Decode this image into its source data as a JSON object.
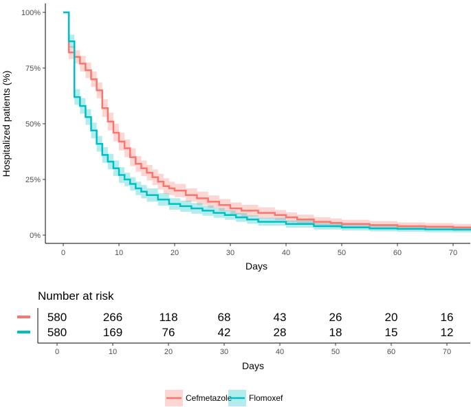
{
  "chart_data": {
    "type": "line",
    "subtype": "kaplan-meier",
    "ylabel": "Hospitalized patients (%)",
    "xlabel": "Days",
    "xlim": [
      -4,
      74
    ],
    "ylim": [
      0,
      100
    ],
    "x_ticks": [
      0,
      10,
      20,
      30,
      40,
      50,
      60,
      70
    ],
    "y_ticks": [
      0,
      25,
      50,
      75,
      100
    ],
    "y_tick_labels": [
      "0%",
      "25%",
      "50%",
      "75%",
      "100%"
    ],
    "colors": {
      "Cefmetazole": "#F8766D",
      "Flomoxef": "#00BFC4"
    },
    "series": [
      {
        "name": "Cefmetazole",
        "color": "#F8766D",
        "x": [
          0,
          1,
          2,
          3,
          4,
          5,
          6,
          7,
          8,
          9,
          10,
          11,
          12,
          13,
          14,
          15,
          16,
          17,
          18,
          19,
          20,
          22,
          24,
          26,
          28,
          30,
          32,
          35,
          38,
          40,
          42,
          45,
          48,
          50,
          55,
          60,
          65,
          70,
          74
        ],
        "y": [
          100,
          82,
          80,
          77,
          74,
          70,
          65,
          57,
          51,
          46,
          42,
          39,
          35,
          32,
          30,
          28,
          26,
          24,
          22,
          21,
          20,
          18,
          16.5,
          15,
          13.5,
          12,
          11,
          10,
          9,
          8,
          7,
          6,
          5.5,
          5,
          4.5,
          4,
          3.8,
          3.5,
          3.2
        ],
        "ci_upper": [
          100,
          85,
          83,
          80.5,
          77.5,
          73.5,
          68.5,
          61,
          55,
          50,
          46,
          43,
          39,
          35.5,
          33.5,
          31.5,
          29.5,
          27.5,
          25.5,
          24,
          23,
          21,
          19.5,
          17.8,
          16.2,
          14.7,
          13.6,
          12.5,
          11.3,
          10.2,
          9.2,
          8.1,
          7.5,
          6.9,
          6.3,
          5.7,
          5.4,
          5,
          4.7
        ],
        "ci_lower": [
          100,
          79,
          77,
          73.5,
          70.5,
          66.5,
          61.5,
          53,
          47,
          42,
          38,
          35,
          31,
          28.5,
          26.5,
          24.5,
          22.5,
          20.5,
          18.5,
          18,
          17,
          15,
          13.5,
          12.2,
          10.8,
          9.3,
          8.4,
          7.5,
          6.7,
          5.8,
          4.8,
          3.9,
          3.5,
          3.1,
          2.7,
          2.3,
          2.2,
          2,
          1.7
        ]
      },
      {
        "name": "Flomoxef",
        "color": "#00BFC4",
        "x": [
          0,
          1,
          2,
          3,
          4,
          5,
          6,
          7,
          8,
          9,
          10,
          11,
          12,
          13,
          14,
          15,
          17,
          19,
          21,
          23,
          25,
          27,
          29,
          31,
          33,
          35,
          40,
          45,
          50,
          55,
          60,
          65,
          70,
          74
        ],
        "y": [
          100,
          87,
          62,
          58,
          53,
          47,
          41,
          36,
          33,
          30,
          27,
          25,
          23,
          21,
          19.5,
          18,
          16,
          14,
          13,
          12,
          11,
          10,
          9,
          8,
          7,
          6,
          5,
          4,
          3.5,
          3,
          2.8,
          2.6,
          2.5,
          2.3
        ],
        "ci_upper": [
          100,
          90,
          65.5,
          61.5,
          56.5,
          50.5,
          44.5,
          39.5,
          36.5,
          33.5,
          30.5,
          28,
          26,
          24,
          22.5,
          21,
          18.8,
          16.6,
          15.5,
          14.4,
          13.3,
          12.2,
          11.1,
          10,
          8.9,
          7.8,
          6.6,
          5.5,
          4.9,
          4.3,
          4.1,
          3.9,
          3.8,
          3.6
        ],
        "ci_lower": [
          100,
          84,
          58.5,
          54.5,
          49.5,
          43.5,
          37.5,
          32.5,
          29.5,
          26.5,
          23.5,
          22,
          20,
          18,
          16.5,
          15,
          13.2,
          11.4,
          10.5,
          9.6,
          8.7,
          7.8,
          6.9,
          6,
          5.1,
          4.2,
          3.4,
          2.5,
          2.1,
          1.7,
          1.5,
          1.3,
          1.2,
          1
        ]
      }
    ],
    "risk_table": {
      "title": "Number at risk",
      "times": [
        0,
        10,
        20,
        30,
        40,
        50,
        60,
        70
      ],
      "rows": [
        {
          "name": "Cefmetazole",
          "color": "#F8766D",
          "values": [
            "580",
            "266",
            "118",
            "68",
            "43",
            "26",
            "20",
            "16"
          ]
        },
        {
          "name": "Flomoxef",
          "color": "#00BFC4",
          "values": [
            "580",
            "169",
            "76",
            "42",
            "28",
            "18",
            "15",
            "12"
          ]
        }
      ],
      "xlabel": "Days",
      "x_ticks": [
        0,
        10,
        20,
        30,
        40,
        50,
        60,
        70
      ]
    },
    "legend": {
      "position": "bottom",
      "items": [
        "Cefmetazole",
        "Flomoxef"
      ]
    }
  }
}
